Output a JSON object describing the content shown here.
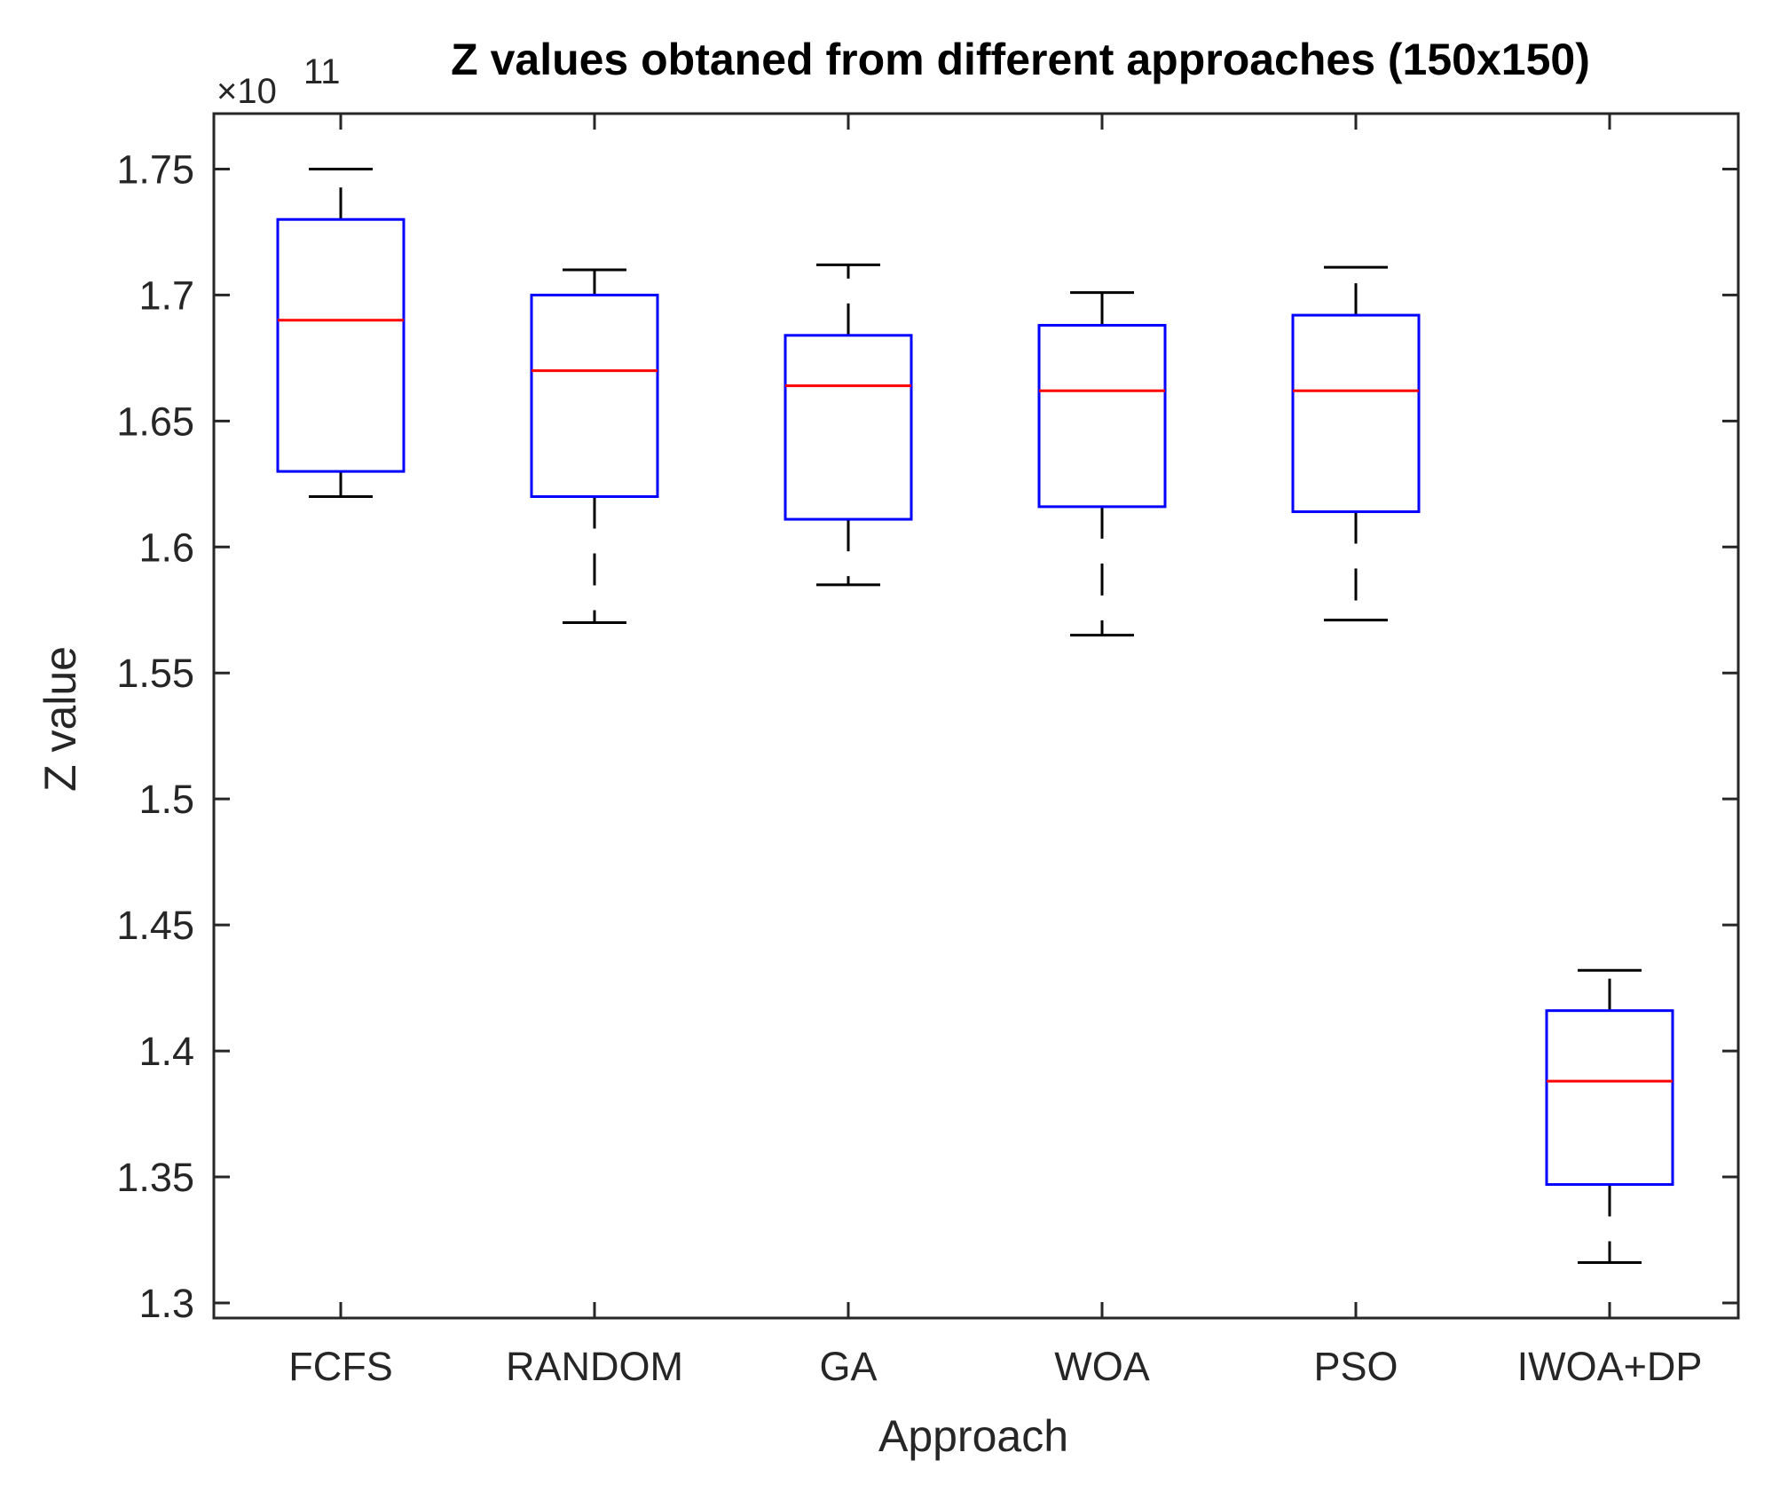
{
  "chart_data": {
    "type": "box",
    "title": "Z values obtaned from different approaches (150x150)",
    "xlabel": "Approach",
    "ylabel": "Z value",
    "y_exponent": {
      "prefix": "×10",
      "power": "11"
    },
    "ylim": [
      1.294,
      1.772
    ],
    "yticks": [
      1.3,
      1.35,
      1.4,
      1.45,
      1.5,
      1.55,
      1.6,
      1.65,
      1.7,
      1.75
    ],
    "ytick_labels": [
      "1.3",
      "1.35",
      "1.4",
      "1.45",
      "1.5",
      "1.55",
      "1.6",
      "1.65",
      "1.7",
      "1.75"
    ],
    "categories": [
      "FCFS",
      "RANDOM",
      "GA",
      "WOA",
      "PSO",
      "IWOA+DP"
    ],
    "boxes": [
      {
        "category": "FCFS",
        "whisker_low": 1.62,
        "q1": 1.63,
        "median": 1.69,
        "q3": 1.73,
        "whisker_high": 1.75
      },
      {
        "category": "RANDOM",
        "whisker_low": 1.57,
        "q1": 1.62,
        "median": 1.67,
        "q3": 1.7,
        "whisker_high": 1.71
      },
      {
        "category": "GA",
        "whisker_low": 1.585,
        "q1": 1.611,
        "median": 1.664,
        "q3": 1.684,
        "whisker_high": 1.712
      },
      {
        "category": "WOA",
        "whisker_low": 1.565,
        "q1": 1.616,
        "median": 1.662,
        "q3": 1.688,
        "whisker_high": 1.701
      },
      {
        "category": "PSO",
        "whisker_low": 1.571,
        "q1": 1.614,
        "median": 1.662,
        "q3": 1.692,
        "whisker_high": 1.711
      },
      {
        "category": "IWOA+DP",
        "whisker_low": 1.316,
        "q1": 1.347,
        "median": 1.388,
        "q3": 1.416,
        "whisker_high": 1.432
      }
    ],
    "colors": {
      "box": "#0000ff",
      "median": "#ff0000",
      "whisker": "#000000",
      "axis": "#262626"
    },
    "grid": false,
    "legend": "none"
  }
}
